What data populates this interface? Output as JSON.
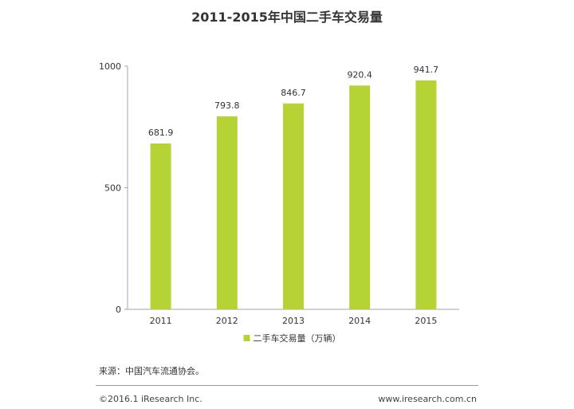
{
  "chart_data": {
    "type": "bar",
    "title": "2011-2015年中国二手车交易量",
    "categories": [
      "2011",
      "2012",
      "2013",
      "2014",
      "2015"
    ],
    "series": [
      {
        "name": "二手车交易量（万辆）",
        "values": [
          681.9,
          793.8,
          846.7,
          920.4,
          941.7
        ]
      }
    ],
    "data_labels": [
      "681.9",
      "793.8",
      "846.7",
      "920.4",
      "941.7"
    ],
    "y_ticks": [
      "0",
      "500",
      "1000"
    ],
    "ylim": [
      0,
      1000
    ],
    "grid": false,
    "legend_position": "bottom",
    "colors": {
      "bar": "#b5d334",
      "axis": "#a6a6a6"
    }
  },
  "footer": {
    "source": "来源：中国汽车流通协会。",
    "copyright": "©2016.1 iResearch Inc.",
    "website": "www.iresearch.com.cn"
  }
}
